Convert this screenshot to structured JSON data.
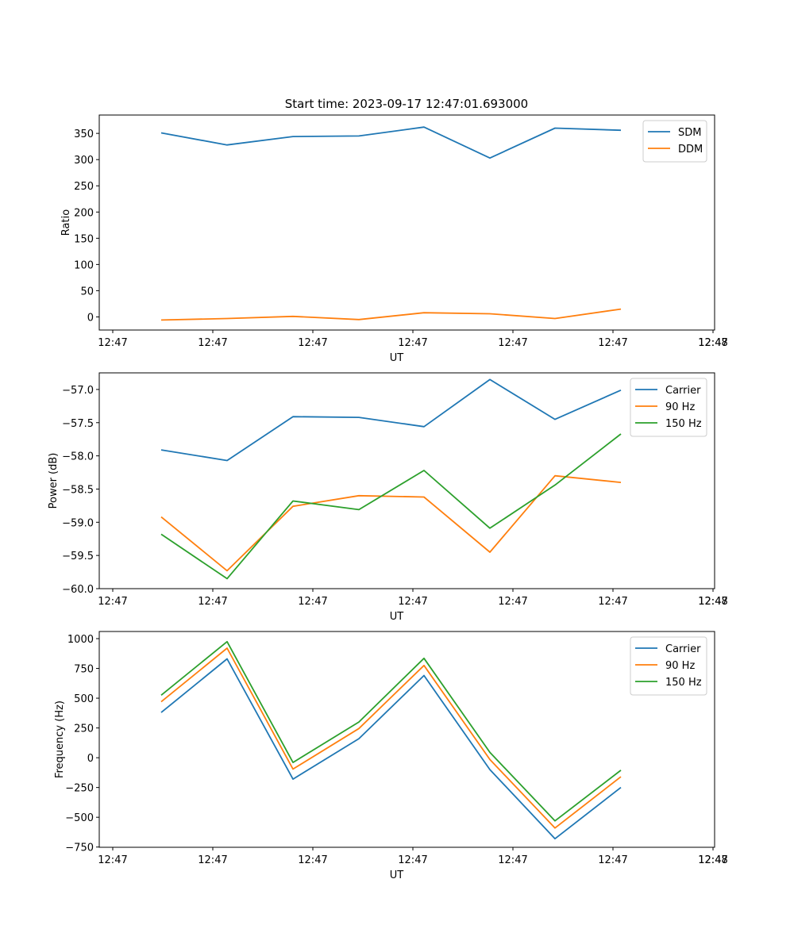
{
  "figure": {
    "title": "Start time: 2023-09-17 12:47:01.693000"
  },
  "chart_data": [
    {
      "type": "line",
      "title": "Start time: 2023-09-17 12:47:01.693000",
      "xlabel": "UT",
      "ylabel": "Ratio",
      "x_tick_labels": [
        "12:47",
        "12:47",
        "12:47",
        "12:47",
        "12:47",
        "12:47",
        "12:47"
      ],
      "x_tick_last": "12:48",
      "ylim": [
        -25,
        385
      ],
      "yticks": [
        0,
        50,
        100,
        150,
        200,
        250,
        300,
        350
      ],
      "ytick_labels": [
        "0",
        "50",
        "100",
        "150",
        "200",
        "250",
        "300",
        "350"
      ],
      "legend_position": "top-right",
      "series": [
        {
          "name": "SDM",
          "color": "#1f77b4",
          "values": [
            351,
            328,
            344,
            345,
            362,
            303,
            360,
            356
          ]
        },
        {
          "name": "DDM",
          "color": "#ff7f0e",
          "values": [
            -6,
            -3,
            1,
            -5,
            8,
            6,
            -3,
            15
          ]
        }
      ]
    },
    {
      "type": "line",
      "title": "",
      "xlabel": "UT",
      "ylabel": "Power (dB)",
      "x_tick_labels": [
        "12:47",
        "12:47",
        "12:47",
        "12:47",
        "12:47",
        "12:47",
        "12:47"
      ],
      "x_tick_last": "12:48",
      "ylim": [
        -60.0,
        -56.75
      ],
      "yticks": [
        -60.0,
        -59.5,
        -59.0,
        -58.5,
        -58.0,
        -57.5,
        -57.0
      ],
      "ytick_labels": [
        "−60.0",
        "−59.5",
        "−59.0",
        "−58.5",
        "−58.0",
        "−57.5",
        "−57.0"
      ],
      "legend_position": "top-right",
      "series": [
        {
          "name": "Carrier",
          "color": "#1f77b4",
          "values": [
            -57.91,
            -58.07,
            -57.41,
            -57.42,
            -57.56,
            -56.85,
            -57.45,
            -57.01
          ]
        },
        {
          "name": "90 Hz",
          "color": "#ff7f0e",
          "values": [
            -58.92,
            -59.73,
            -58.76,
            -58.6,
            -58.62,
            -59.45,
            -58.3,
            -58.4
          ]
        },
        {
          "name": "150 Hz",
          "color": "#2ca02c",
          "values": [
            -59.18,
            -59.85,
            -58.68,
            -58.81,
            -58.22,
            -59.09,
            -58.44,
            -57.67
          ]
        }
      ]
    },
    {
      "type": "line",
      "title": "",
      "xlabel": "UT",
      "ylabel": "Frequency (Hz)",
      "x_tick_labels": [
        "12:47",
        "12:47",
        "12:47",
        "12:47",
        "12:47",
        "12:47",
        "12:47"
      ],
      "x_tick_last": "12:48",
      "ylim": [
        -752,
        1060
      ],
      "yticks": [
        -750,
        -500,
        -250,
        0,
        250,
        500,
        750,
        1000
      ],
      "ytick_labels": [
        "−750",
        "−500",
        "−250",
        "0",
        "250",
        "500",
        "750",
        "1000"
      ],
      "legend_position": "top-right",
      "series": [
        {
          "name": "Carrier",
          "color": "#1f77b4",
          "values": [
            380,
            830,
            -180,
            160,
            690,
            -100,
            -680,
            -250
          ]
        },
        {
          "name": "90 Hz",
          "color": "#ff7f0e",
          "values": [
            470,
            920,
            -95,
            245,
            775,
            -15,
            -590,
            -160
          ]
        },
        {
          "name": "150 Hz",
          "color": "#2ca02c",
          "values": [
            525,
            975,
            -40,
            300,
            835,
            45,
            -530,
            -105
          ]
        }
      ]
    }
  ]
}
